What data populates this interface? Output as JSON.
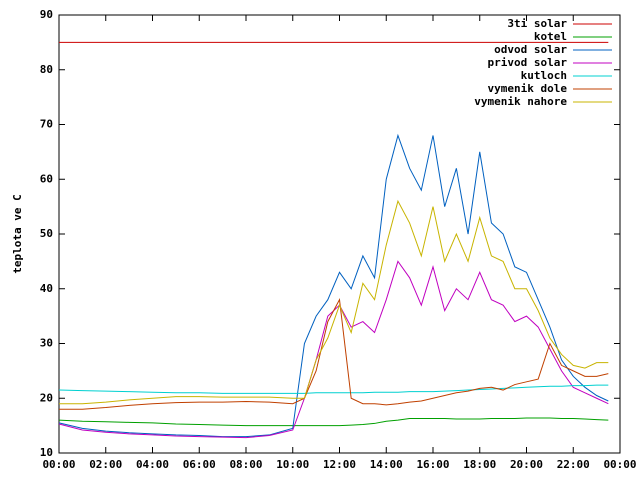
{
  "chart_data": {
    "type": "line",
    "y_label": "teplota ve C",
    "x": [
      0,
      1,
      2,
      3,
      4,
      5,
      6,
      7,
      8,
      9,
      10,
      10.5,
      11,
      11.5,
      12,
      12.5,
      13,
      13.5,
      14,
      14.5,
      15,
      15.5,
      16,
      16.5,
      17,
      17.5,
      18,
      18.5,
      19,
      19.5,
      20,
      20.5,
      21,
      21.5,
      22,
      22.5,
      23,
      23.5
    ],
    "xlim": [
      0,
      24
    ],
    "xticks": [
      {
        "value": 0,
        "label": "00:00"
      },
      {
        "value": 2,
        "label": "02:00"
      },
      {
        "value": 4,
        "label": "04:00"
      },
      {
        "value": 6,
        "label": "06:00"
      },
      {
        "value": 8,
        "label": "08:00"
      },
      {
        "value": 10,
        "label": "10:00"
      },
      {
        "value": 12,
        "label": "12:00"
      },
      {
        "value": 14,
        "label": "14:00"
      },
      {
        "value": 16,
        "label": "16:00"
      },
      {
        "value": 18,
        "label": "18:00"
      },
      {
        "value": 20,
        "label": "20:00"
      },
      {
        "value": 22,
        "label": "22:00"
      },
      {
        "value": 24,
        "label": "00:00"
      }
    ],
    "ylim": [
      10,
      90
    ],
    "yticks": [
      10,
      20,
      30,
      40,
      50,
      60,
      70,
      80,
      90
    ],
    "grid": false,
    "legend": "top-right",
    "series": [
      {
        "name": "3ti solar",
        "color": "#cc0000",
        "values": [
          85,
          85,
          85,
          85,
          85,
          85,
          85,
          85,
          85,
          85,
          85,
          85,
          85,
          85,
          85,
          85,
          85,
          85,
          85,
          85,
          85,
          85,
          85,
          85,
          85,
          85,
          85,
          85,
          85,
          85,
          85,
          85,
          85,
          85,
          85,
          85,
          85,
          85
        ]
      },
      {
        "name": "kotel",
        "color": "#00a000",
        "values": [
          16,
          15.8,
          15.7,
          15.6,
          15.5,
          15.3,
          15.2,
          15.1,
          15,
          15,
          15,
          15,
          15,
          15,
          15,
          15.1,
          15.2,
          15.4,
          15.8,
          16,
          16.3,
          16.3,
          16.3,
          16.3,
          16.2,
          16.2,
          16.2,
          16.3,
          16.3,
          16.3,
          16.4,
          16.4,
          16.4,
          16.3,
          16.3,
          16.2,
          16.1,
          16
        ]
      },
      {
        "name": "odvod solar",
        "color": "#0060c0",
        "values": [
          15.5,
          14.5,
          14,
          13.7,
          13.5,
          13.3,
          13.2,
          13,
          13,
          13.3,
          14.5,
          30,
          35,
          38,
          43,
          40,
          46,
          42,
          60,
          68,
          62,
          58,
          68,
          55,
          62,
          50,
          65,
          52,
          50,
          44,
          43,
          38,
          33,
          27,
          24,
          22,
          20.5,
          19.5
        ]
      },
      {
        "name": "privod solar",
        "color": "#c000c0",
        "values": [
          15.3,
          14.2,
          13.8,
          13.5,
          13.3,
          13.1,
          13,
          12.9,
          12.8,
          13.2,
          14.2,
          20,
          27,
          35,
          37,
          33,
          34,
          32,
          38,
          45,
          42,
          37,
          44,
          36,
          40,
          38,
          43,
          38,
          37,
          34,
          35,
          33,
          29,
          25,
          22,
          21,
          20,
          19
        ]
      },
      {
        "name": "kutloch",
        "color": "#00d0d0",
        "values": [
          21.5,
          21.4,
          21.3,
          21.2,
          21.1,
          21,
          21,
          20.9,
          20.9,
          20.9,
          20.9,
          20.9,
          21,
          21,
          21,
          21,
          21,
          21.1,
          21.1,
          21.1,
          21.2,
          21.2,
          21.2,
          21.3,
          21.4,
          21.5,
          21.6,
          21.7,
          21.8,
          21.9,
          22,
          22.1,
          22.2,
          22.2,
          22.3,
          22.3,
          22.4,
          22.4
        ]
      },
      {
        "name": "vymenik dole",
        "color": "#c04000",
        "values": [
          18,
          18,
          18.3,
          18.7,
          19,
          19.2,
          19.3,
          19.3,
          19.4,
          19.3,
          19,
          20,
          25,
          34,
          38,
          20,
          19,
          19,
          18.8,
          19,
          19.3,
          19.5,
          20,
          20.5,
          21,
          21.3,
          21.8,
          22,
          21.5,
          22.5,
          23,
          23.5,
          30,
          26,
          25,
          24,
          24,
          24.5
        ]
      },
      {
        "name": "vymenik nahore",
        "color": "#c8b400",
        "values": [
          19,
          19,
          19.3,
          19.7,
          20,
          20.3,
          20.3,
          20.2,
          20.2,
          20.2,
          20,
          20,
          27,
          31,
          37,
          32,
          41,
          38,
          48,
          56,
          52,
          46,
          55,
          45,
          50,
          45,
          53,
          46,
          45,
          40,
          40,
          36,
          31,
          28,
          26,
          25.5,
          26.5,
          26.5
        ]
      }
    ]
  }
}
